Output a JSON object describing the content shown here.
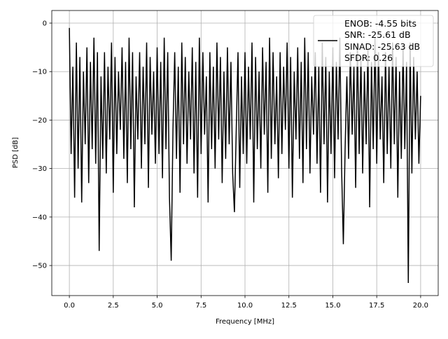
{
  "chart_data": {
    "type": "line",
    "title": "",
    "xlabel": "Frequency [MHz]",
    "ylabel": "PSD [dB]",
    "xlim": [
      -1.0,
      21.0
    ],
    "ylim": [
      -56.2,
      2.6
    ],
    "x_range": [
      0,
      20
    ],
    "xticks": [
      0,
      2.5,
      5,
      7.5,
      10,
      12.5,
      15,
      17.5,
      20
    ],
    "xtick_labels": [
      "0.0",
      "2.5",
      "5.0",
      "7.5",
      "10.0",
      "12.5",
      "15.0",
      "17.5",
      "20.0"
    ],
    "yticks": [
      0,
      -10,
      -20,
      -30,
      -40,
      -50
    ],
    "ytick_labels": [
      "0",
      "−10",
      "−20",
      "−30",
      "−40",
      "−50"
    ],
    "grid": true,
    "line_color": "#000000",
    "legend_placement": "upper-right",
    "legend_lines": [
      "ENOB: -4.55 bits",
      "SNR: -25.61 dB",
      "SINAD: -25.63 dB",
      "SFDR: 0.26"
    ],
    "values": [
      -1,
      -27,
      -9,
      -36,
      -4,
      -30,
      -7,
      -37,
      -10,
      -25,
      -5,
      -33,
      -8,
      -26,
      -3,
      -29,
      -6,
      -47,
      -11,
      -28,
      -6,
      -31,
      -9,
      -24,
      -4,
      -35,
      -7,
      -27,
      -10,
      -22,
      -5,
      -28,
      -8,
      -33,
      -3,
      -26,
      -6,
      -38,
      -11,
      -24,
      -6,
      -30,
      -9,
      -25,
      -4,
      -34,
      -7,
      -23,
      -10,
      -29,
      -5,
      -27,
      -8,
      -32,
      -3,
      -26,
      -6,
      -36,
      -49,
      -22,
      -6,
      -28,
      -9,
      -35,
      -4,
      -25,
      -7,
      -29,
      -10,
      -24,
      -5,
      -31,
      -8,
      -36,
      -3,
      -27,
      -6,
      -23,
      -11,
      -37,
      -6,
      -26,
      -9,
      -30,
      -4,
      -24,
      -7,
      -33,
      -10,
      -28,
      -5,
      -25,
      -8,
      -31,
      -39,
      -22,
      -6,
      -34,
      -11,
      -27,
      -6,
      -29,
      -9,
      -24,
      -4,
      -37,
      -7,
      -26,
      -10,
      -30,
      -5,
      -23,
      -8,
      -35,
      -3,
      -28,
      -6,
      -25,
      -11,
      -32,
      -6,
      -27,
      -9,
      -22,
      -4,
      -30,
      -7,
      -36,
      -10,
      -24,
      -5,
      -28,
      -8,
      -33,
      -3,
      -26,
      -6,
      -31,
      -11,
      -23,
      -6,
      -29,
      -9,
      -35,
      -4,
      -25,
      -7,
      -37,
      -10,
      -27,
      -5,
      -32,
      -8,
      -24,
      -3,
      -30,
      -45.6,
      -26,
      -11,
      -28,
      -6,
      -23,
      -9,
      -34,
      -4,
      -27,
      -7,
      -31,
      -10,
      -25,
      -5,
      -38,
      -8,
      -26,
      -3,
      -29,
      -6,
      -24,
      -11,
      -33,
      -6,
      -27,
      -9,
      -30,
      -4,
      -25,
      -7,
      -36,
      -10,
      -28,
      -5,
      -26,
      -8,
      -53.6,
      -4,
      -31,
      -7,
      -24,
      -10,
      -29,
      -15
    ]
  }
}
